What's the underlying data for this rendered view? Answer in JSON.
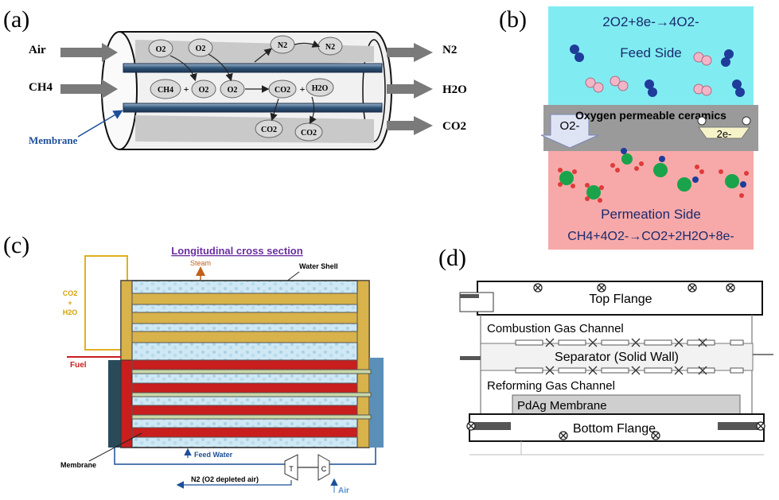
{
  "panel_a": {
    "label": "(a)",
    "inputs": {
      "air": "Air",
      "ch4": "CH4"
    },
    "outputs": {
      "n2": "N2",
      "h2o": "H2O",
      "co2": "CO2"
    },
    "membrane_label": "Membrane",
    "molecules": {
      "o2_a": "O2",
      "o2_b": "O2",
      "n2_a": "N2",
      "n2_b": "N2",
      "ch4": "CH4",
      "plus1": "+",
      "o2_c": "O2",
      "o2_d": "O2",
      "co2_a": "CO2",
      "plus2": "+",
      "h2o": "H2O",
      "co2_b": "CO2",
      "co2_c": "CO2"
    }
  },
  "panel_b": {
    "label": "(b)",
    "feed_equation": "2O2+8e-→4O2-",
    "feed_side": "Feed Side",
    "ceramics_title": "Oxygen permeable ceramics",
    "ion": "O2-",
    "electron": "2e-",
    "permeation_side": "Permeation Side",
    "perm_equation": "CH4+4O2-→CO2+2H2O+8e-",
    "colors": {
      "feed_bg": "#80ECF2",
      "perm_bg": "#F7A9A9",
      "ceramic": "#9A9A9A"
    }
  },
  "panel_c": {
    "label": "(c)",
    "title": "Longitudinal cross section",
    "steam": "Steam",
    "water_shell": "Water Shell",
    "co2_h2o": [
      "CO2",
      "+",
      "H2O"
    ],
    "fuel": "Fuel",
    "membrane": "Membrane",
    "feed_water": "Feed Water",
    "n2_out": "N2 (O2 depleted air)",
    "air": "Air",
    "turbine": "T",
    "compressor": "C"
  },
  "panel_d": {
    "label": "(d)",
    "top_flange": "Top Flange",
    "combustion_channel": "Combustion Gas Channel",
    "separator": "Separator (Solid Wall)",
    "reforming_channel": "Reforming Gas Channel",
    "membrane": "PdAg Membrane",
    "bottom_flange": "Bottom Flange"
  }
}
